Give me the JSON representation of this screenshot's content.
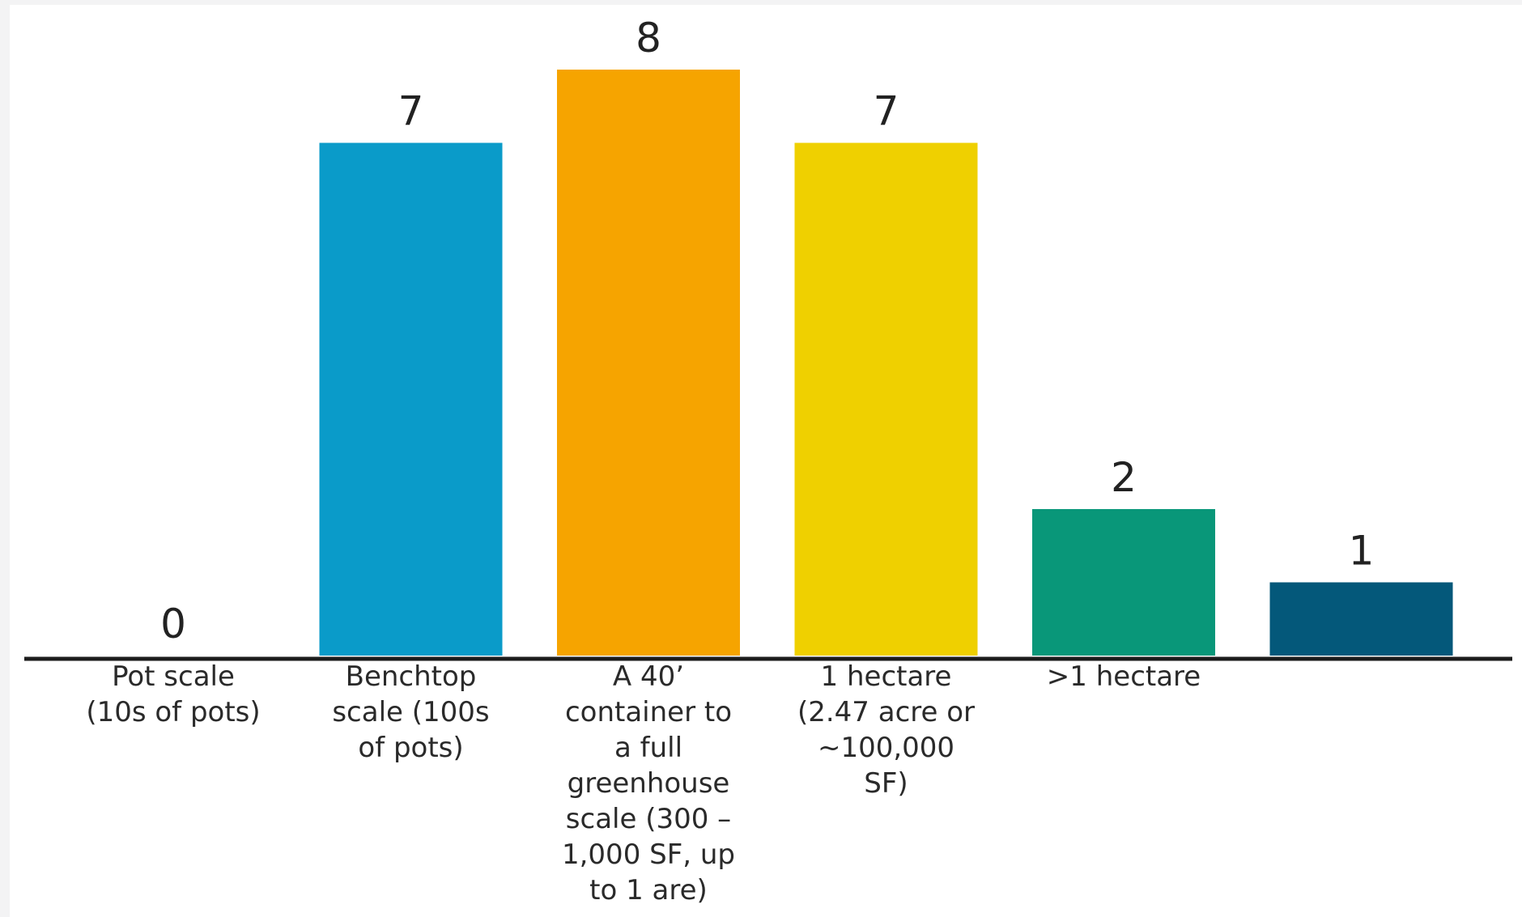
{
  "chart_data": {
    "type": "bar",
    "categories": [
      "Pot scale (10s of pots)",
      "Benchtop scale (100s of pots)",
      "A 40’ container to a full greenhouse scale (300 – 1,000 SF, up to 1 are)",
      "1 hectare (2.47 acre or ~100,000 SF)",
      ">1 hectare",
      ""
    ],
    "category_lines": [
      [
        "Pot scale",
        "(10s of pots)"
      ],
      [
        "Benchtop",
        "scale (100s",
        "of pots)"
      ],
      [
        "A 40’",
        "container to",
        "a full",
        "greenhouse",
        "scale (300 –",
        "1,000 SF, up",
        "to 1 are)"
      ],
      [
        "1 hectare",
        "(2.47 acre or",
        "~100,000",
        "SF)"
      ],
      [
        ">1 hectare"
      ],
      []
    ],
    "values": [
      0,
      7,
      8,
      7,
      2,
      1
    ],
    "value_labels": [
      "0",
      "7",
      "8",
      "7",
      "2",
      "1"
    ],
    "colors": [
      "#0a9bc9",
      "#0a9bc9",
      "#f6a400",
      "#efd000",
      "#099779",
      "#04587a"
    ],
    "axis_color": "#1c1c1c",
    "ylim": [
      0,
      8
    ],
    "title": "",
    "xlabel": "",
    "ylabel": "",
    "grid": false,
    "legend": "none"
  }
}
